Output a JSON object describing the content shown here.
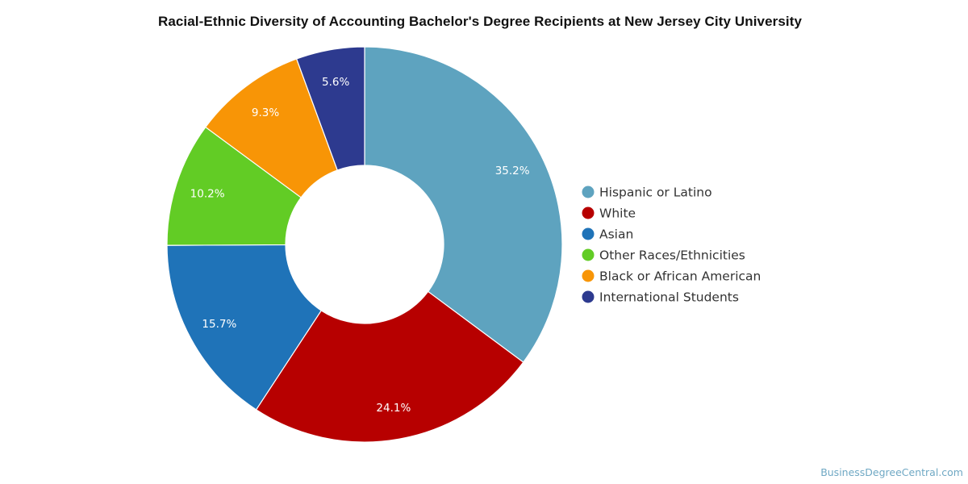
{
  "chart_data": {
    "type": "pie",
    "style": "donut",
    "title": "Racial-Ethnic Diversity of Accounting Bachelor's Degree Recipients at New Jersey City University",
    "categories": [
      "Hispanic or Latino",
      "White",
      "Asian",
      "Other Races/Ethnicities",
      "Black or African American",
      "International Students"
    ],
    "values": [
      35.2,
      24.1,
      15.7,
      10.2,
      9.3,
      5.6
    ],
    "labels": [
      "35.2%",
      "24.1%",
      "15.7%",
      "10.2%",
      "9.3%",
      "5.6%"
    ],
    "colors": [
      "#5ea3bf",
      "#b70000",
      "#1f73b8",
      "#62cc25",
      "#f89506",
      "#2d3a8f"
    ],
    "legend": "right"
  },
  "watermark": "BusinessDegreeCentral.com"
}
